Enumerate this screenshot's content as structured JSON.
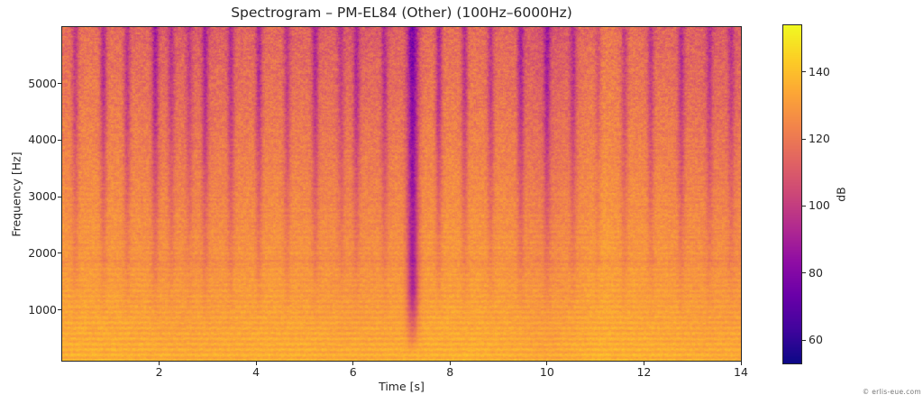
{
  "title": "Spectrogram – PM-EL84 (Other) (100Hz–6000Hz)",
  "watermark": "© erlis-eue.com",
  "colors": {
    "text": "#262626",
    "spine": "#262626",
    "background": "#ffffff",
    "watermark": "#777777"
  },
  "chart_data": {
    "type": "heatmap",
    "subtype": "spectrogram",
    "title": "Spectrogram – PM-EL84 (Other) (100Hz–6000Hz)",
    "xlabel": "Time [s]",
    "ylabel": "Frequency [Hz]",
    "colorbar_label": "dB",
    "xlim": [
      0,
      14
    ],
    "ylim": [
      100,
      6000
    ],
    "x_ticks": [
      2,
      4,
      6,
      8,
      10,
      12,
      14
    ],
    "y_ticks": [
      1000,
      2000,
      3000,
      4000,
      5000
    ],
    "colorbar_ticks": [
      60,
      80,
      100,
      120,
      140
    ],
    "vmin": 53,
    "vmax": 154,
    "colormap": "plasma",
    "colormap_stops": [
      [
        0.0,
        "#0d0887"
      ],
      [
        0.1,
        "#41049d"
      ],
      [
        0.2,
        "#6a00a8"
      ],
      [
        0.3,
        "#8f0da4"
      ],
      [
        0.4,
        "#b12a90"
      ],
      [
        0.5,
        "#cc4778"
      ],
      [
        0.6,
        "#e16462"
      ],
      [
        0.7,
        "#f2844b"
      ],
      [
        0.8,
        "#fca636"
      ],
      [
        0.9,
        "#fcce25"
      ],
      [
        1.0,
        "#f0f921"
      ]
    ],
    "legend_position": "right-colorbar",
    "grid": false,
    "profile": {
      "db_at_min_freq": 134,
      "db_at_max_freq": 114,
      "exponent": 1.1,
      "bottom_boost_db": 2,
      "bottom_boost_decay_hz": 400
    },
    "harmonics": {
      "spacing_hz": 95,
      "amp_db": 3.5,
      "decay_hz": 2200,
      "dip_center_hz": 1850,
      "dip_amp_db": 2.5,
      "dip_width_hz": 80
    },
    "onsets": [
      [
        0.27,
        18
      ],
      [
        0.85,
        22
      ],
      [
        1.34,
        20
      ],
      [
        1.92,
        24
      ],
      [
        2.25,
        16
      ],
      [
        2.62,
        14
      ],
      [
        2.95,
        22
      ],
      [
        3.48,
        20
      ],
      [
        4.06,
        22
      ],
      [
        4.64,
        18
      ],
      [
        5.22,
        21
      ],
      [
        5.75,
        14
      ],
      [
        6.07,
        20
      ],
      [
        6.65,
        18
      ],
      [
        7.77,
        24
      ],
      [
        8.3,
        21
      ],
      [
        8.84,
        19
      ],
      [
        9.46,
        23
      ],
      [
        10.0,
        22
      ],
      [
        10.54,
        19
      ],
      [
        11.05,
        12
      ],
      [
        11.6,
        16
      ],
      [
        12.14,
        18
      ],
      [
        12.77,
        20
      ],
      [
        13.35,
        17
      ],
      [
        13.8,
        15
      ]
    ],
    "onset_sigma_s": 0.07,
    "onset_freq_start_hz": 700,
    "onset_freq_full_hz": 4700,
    "strong_onset": {
      "t": 7.23,
      "db": 38,
      "sigma_s": 0.12,
      "freq_start_hz": 250,
      "freq_full_hz": 1350
    },
    "washes": [
      {
        "t": 10.0,
        "w": 0.5,
        "db": -6
      },
      {
        "t": 11.15,
        "w": 0.25,
        "db": 4
      }
    ],
    "column_wobble": [
      {
        "amp": 2.0,
        "freq": 1.7,
        "phase": 0.5
      },
      {
        "amp": 1.5,
        "freq": 0.6,
        "phase": 2.0
      }
    ],
    "noise": {
      "fine_db": [
        2.5,
        6.5
      ],
      "coarse_db": [
        2.0,
        5.0
      ]
    },
    "seed": 42
  }
}
